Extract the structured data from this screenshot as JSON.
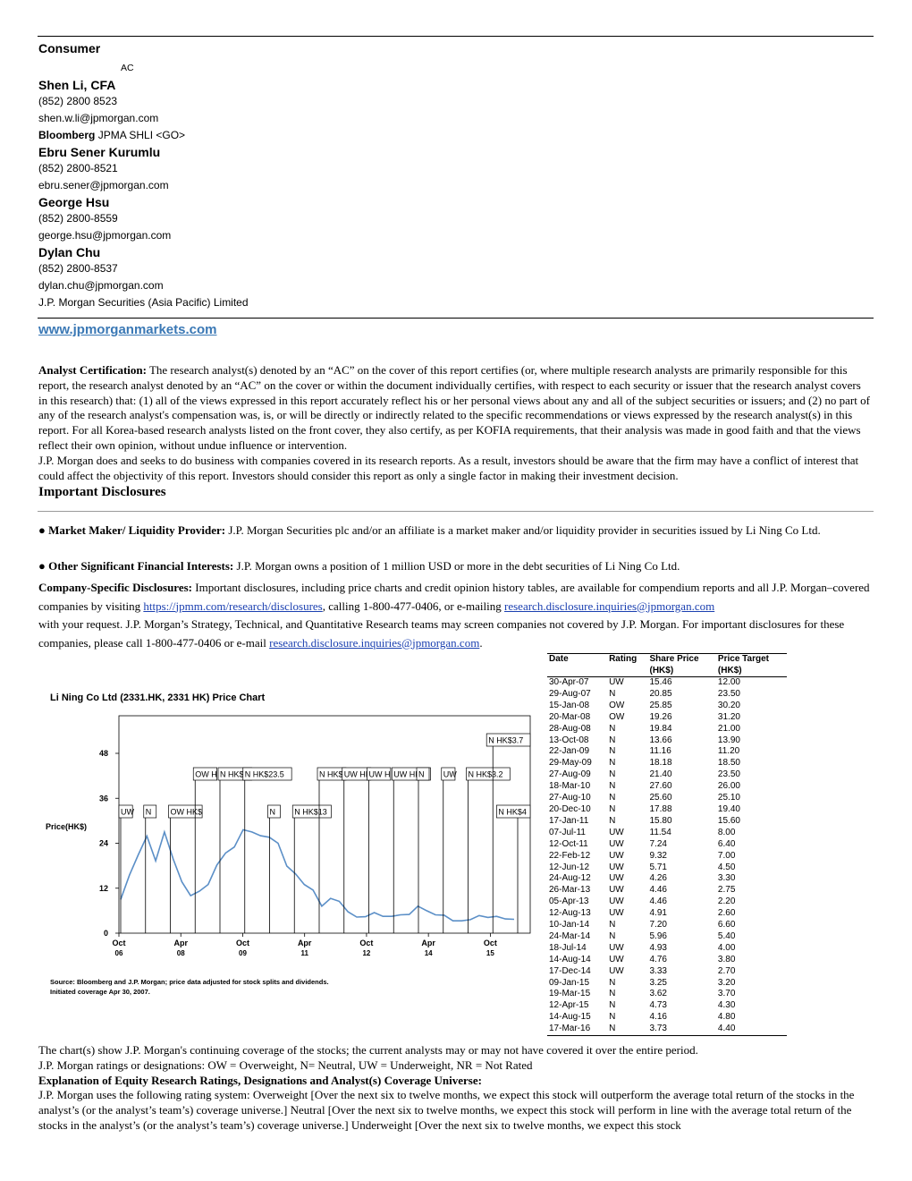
{
  "header": {
    "section": "Consumer",
    "ac_mark": "AC",
    "analysts": [
      {
        "name": "Shen Li, CFA",
        "phone": "(852) 2800 8523",
        "email": "shen.w.li@jpmorgan.com",
        "bloomberg_label": "Bloomberg",
        "bloomberg_value": "JPMA SHLI <GO>"
      },
      {
        "name": "Ebru Sener Kurumlu",
        "phone": "(852) 2800-8521",
        "email": "ebru.sener@jpmorgan.com"
      },
      {
        "name": "George Hsu",
        "phone": "(852) 2800-8559",
        "email": "george.hsu@jpmorgan.com"
      },
      {
        "name": "Dylan Chu",
        "phone": "(852) 2800-8537",
        "email": "dylan.chu@jpmorgan.com"
      }
    ],
    "firm": "J.P. Morgan Securities (Asia Pacific) Limited",
    "website": "www.jpmorganmarkets.com"
  },
  "certification": {
    "label": "Analyst Certification:",
    "text": "The research analyst(s) denoted by an “AC” on the cover of this report certifies (or, where multiple research analysts are primarily responsible for this report, the research analyst denoted by an “AC” on the cover or within the document individually certifies, with respect to each security or issuer that the research analyst covers in this research) that: (1) all of the views expressed in this report accurately reflect his or her personal views about any and all of the subject securities or issuers; and (2) no part of any of the research analyst's compensation was, is, or will be directly or indirectly related to the specific recommendations or views expressed by the research analyst(s) in this report. For all Korea-based research analysts listed on the front cover, they also certify, as per KOFIA requirements, that their analysis was made in good faith and that the views reflect their own opinion, without undue influence or intervention.",
    "text2": "J.P. Morgan does and seeks to do business with companies covered in its research reports. As a result, investors should be aware that the firm may have a conflict of interest that could affect the objectivity of this report. Investors should consider this report as only a single factor in making their investment decision."
  },
  "important": {
    "title": "Important Disclosures",
    "market_maker_label": "Market Maker/ Liquidity Provider:",
    "market_maker_text": "J.P. Morgan Securities plc and/or an affiliate is a market maker and/or liquidity provider in securities issued by Li Ning Co Ltd.",
    "other_label": "Other Significant Financial Interests:",
    "other_text": "J.P. Morgan owns a position of 1 million USD or more in the debt securities of Li Ning Co Ltd.",
    "company_label": "Company-Specific Disclosures:",
    "company_text1": "Important disclosures, including price charts and credit opinion history tables, are available for compendium reports and all J.P. Morgan–covered companies by visiting",
    "company_link1": "https://jpmm.com/research/disclosures",
    "company_text2": ", calling 1-800-477-0406, or e-mailing",
    "company_link2": "research.disclosure.inquiries@jpmorgan.com",
    "company_text3": "with your request. J.P. Morgan’s Strategy, Technical, and Quantitative Research teams may screen companies not covered by J.P. Morgan. For important disclosures for these companies, please call 1-800-477-0406 or e-mail",
    "company_link3": "research.disclosure.inquiries@jpmorgan.com",
    "company_end": "."
  },
  "chart_data": {
    "type": "line",
    "title": "Li Ning Co Ltd (2331.HK, 2331 HK) Price Chart",
    "ylabel": "Price(HK$)",
    "ylim": [
      0,
      48
    ],
    "yticks": [
      "0",
      "12",
      "24",
      "36",
      "48"
    ],
    "xticks": [
      {
        "label1": "Oct",
        "label2": "06"
      },
      {
        "label1": "Apr",
        "label2": "08"
      },
      {
        "label1": "Oct",
        "label2": "09"
      },
      {
        "label1": "Apr",
        "label2": "11"
      },
      {
        "label1": "Oct",
        "label2": "12"
      },
      {
        "label1": "Apr",
        "label2": "14"
      },
      {
        "label1": "Oct",
        "label2": "15"
      }
    ],
    "x": [
      "Oct-06",
      "Apr-07",
      "Aug-07",
      "Jan-08",
      "Mar-08",
      "Jun-08",
      "Aug-08",
      "Oct-08",
      "Dec-08",
      "Jan-09",
      "Mar-09",
      "May-09",
      "Aug-09",
      "Oct-09",
      "Dec-09",
      "Mar-10",
      "Jun-10",
      "Aug-10",
      "Oct-10",
      "Dec-10",
      "Jan-11",
      "Apr-11",
      "Jul-11",
      "Oct-11",
      "Jan-12",
      "Mar-12",
      "Jun-12",
      "Aug-12",
      "Oct-12",
      "Jan-13",
      "Mar-13",
      "Jun-13",
      "Aug-13",
      "Nov-13",
      "Jan-14",
      "Mar-14",
      "Jul-14",
      "Aug-14",
      "Dec-14",
      "Jan-15",
      "Mar-15",
      "Apr-15",
      "Aug-15",
      "Nov-15",
      "Jan-16",
      "Mar-16"
    ],
    "series": [
      {
        "values": [
          9,
          15.5,
          20.9,
          25.9,
          19.3,
          27,
          19.8,
          13.7,
          10,
          11.2,
          13,
          18.2,
          21.4,
          23,
          27.6,
          27,
          26,
          25.6,
          24,
          17.9,
          15.8,
          13,
          11.5,
          7.2,
          9.3,
          8.5,
          5.7,
          4.3,
          4.4,
          5.5,
          4.5,
          4.5,
          4.9,
          5,
          7.2,
          6,
          4.9,
          4.8,
          3.3,
          3.3,
          3.6,
          4.7,
          4.2,
          4.5,
          3.8,
          3.7
        ]
      }
    ],
    "annotations": [
      {
        "label": "UW",
        "row": 1
      },
      {
        "label": "N",
        "row": 1
      },
      {
        "label": "OW HK$",
        "row": 1
      },
      {
        "label": "OW H",
        "row": 2
      },
      {
        "label": "N HK$1",
        "row": 2
      },
      {
        "label": "N HK$23.5",
        "row": 2
      },
      {
        "label": "N",
        "row": 1
      },
      {
        "label": "N HK$13",
        "row": 1
      },
      {
        "label": "N HK$",
        "row": 2
      },
      {
        "label": "UW HK",
        "row": 2
      },
      {
        "label": "UW H",
        "row": 2
      },
      {
        "label": "UW HK$2",
        "row": 2
      },
      {
        "label": "N",
        "row": 2
      },
      {
        "label": "UW",
        "row": 2
      },
      {
        "label": "N HK$3.2",
        "row": 2
      },
      {
        "label": "N HK$3.7",
        "row": 3
      },
      {
        "label": "N HK$4",
        "row": 1
      }
    ],
    "source": "Source: Bloomberg and J.P. Morgan; price data adjusted for stock splits and dividends.",
    "initiated": "Initiated coverage Apr 30, 2007."
  },
  "price_table": {
    "headers": [
      "Date",
      "Rating",
      "Share Price\n(HK$)",
      "Price Target\n(HK$)"
    ],
    "rows": [
      [
        "30-Apr-07",
        "UW",
        "15.46",
        "12.00"
      ],
      [
        "29-Aug-07",
        "N",
        "20.85",
        "23.50"
      ],
      [
        "15-Jan-08",
        "OW",
        "25.85",
        "30.20"
      ],
      [
        "20-Mar-08",
        "OW",
        "19.26",
        "31.20"
      ],
      [
        "28-Aug-08",
        "N",
        "19.84",
        "21.00"
      ],
      [
        "13-Oct-08",
        "N",
        "13.66",
        "13.90"
      ],
      [
        "22-Jan-09",
        "N",
        "11.16",
        "11.20"
      ],
      [
        "29-May-09",
        "N",
        "18.18",
        "18.50"
      ],
      [
        "27-Aug-09",
        "N",
        "21.40",
        "23.50"
      ],
      [
        "18-Mar-10",
        "N",
        "27.60",
        "26.00"
      ],
      [
        "27-Aug-10",
        "N",
        "25.60",
        "25.10"
      ],
      [
        "20-Dec-10",
        "N",
        "17.88",
        "19.40"
      ],
      [
        "17-Jan-11",
        "N",
        "15.80",
        "15.60"
      ],
      [
        "07-Jul-11",
        "UW",
        "11.54",
        "8.00"
      ],
      [
        "12-Oct-11",
        "UW",
        "7.24",
        "6.40"
      ],
      [
        "22-Feb-12",
        "UW",
        "9.32",
        "7.00"
      ],
      [
        "12-Jun-12",
        "UW",
        "5.71",
        "4.50"
      ],
      [
        "24-Aug-12",
        "UW",
        "4.26",
        "3.30"
      ],
      [
        "26-Mar-13",
        "UW",
        "4.46",
        "2.75"
      ],
      [
        "05-Apr-13",
        "UW",
        "4.46",
        "2.20"
      ],
      [
        "12-Aug-13",
        "UW",
        "4.91",
        "2.60"
      ],
      [
        "10-Jan-14",
        "N",
        "7.20",
        "6.60"
      ],
      [
        "24-Mar-14",
        "N",
        "5.96",
        "5.40"
      ],
      [
        "18-Jul-14",
        "UW",
        "4.93",
        "4.00"
      ],
      [
        "14-Aug-14",
        "UW",
        "4.76",
        "3.80"
      ],
      [
        "17-Dec-14",
        "UW",
        "3.33",
        "2.70"
      ],
      [
        "09-Jan-15",
        "N",
        "3.25",
        "3.20"
      ],
      [
        "19-Mar-15",
        "N",
        "3.62",
        "3.70"
      ],
      [
        "12-Apr-15",
        "N",
        "4.73",
        "4.30"
      ],
      [
        "14-Aug-15",
        "N",
        "4.16",
        "4.80"
      ],
      [
        "17-Mar-16",
        "N",
        "3.73",
        "4.40"
      ]
    ]
  },
  "footer": {
    "note1": "The chart(s) show J.P. Morgan's continuing coverage of the stocks; the current analysts may or may not have covered it over the entire period.",
    "note2": "J.P. Morgan ratings or designations: OW = Overweight, N= Neutral, UW = Underweight, NR = Not Rated",
    "explanation_title": "Explanation of Equity Research Ratings, Designations and Analyst(s) Coverage Universe:",
    "explanation_text": "J.P. Morgan uses the following rating system: Overweight [Over the next six to twelve months, we expect this stock will outperform the average total return of the stocks in the analyst’s (or the analyst’s team’s) coverage universe.] Neutral [Over the next six to twelve months, we expect this stock will perform in line with the average total return of the stocks in the analyst’s (or the analyst’s team’s) coverage universe.] Underweight [Over the next six to twelve months, we expect this stock"
  }
}
